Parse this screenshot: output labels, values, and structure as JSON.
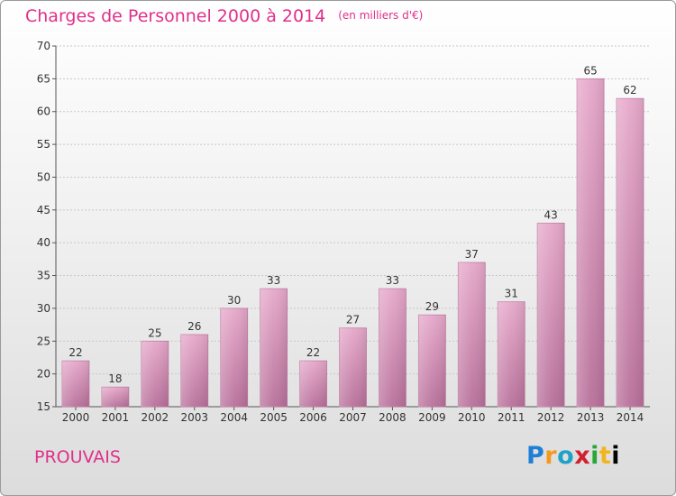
{
  "header": {
    "title": "Charges de Personnel 2000 à 2014",
    "subtitle": "(en milliers d'€)"
  },
  "footer": {
    "commune": "PROUVAIS",
    "logo_letters": [
      "P",
      "r",
      "o",
      "x",
      "i",
      "t",
      "i"
    ]
  },
  "chart_data": {
    "type": "bar",
    "title": "Charges de Personnel 2000 à 2014",
    "subtitle": "(en milliers d'€)",
    "xlabel": "",
    "ylabel": "",
    "categories": [
      "2000",
      "2001",
      "2002",
      "2003",
      "2004",
      "2005",
      "2006",
      "2007",
      "2008",
      "2009",
      "2010",
      "2011",
      "2012",
      "2013",
      "2014"
    ],
    "values": [
      22,
      18,
      25,
      26,
      30,
      33,
      22,
      27,
      33,
      29,
      37,
      31,
      43,
      65,
      62
    ],
    "data_labels": [
      "22",
      "18",
      "25",
      "26",
      "30",
      "33",
      "22",
      "27",
      "33",
      "29",
      "37",
      "31",
      "43",
      "65",
      "62"
    ],
    "ylim": [
      15,
      70
    ],
    "yticks": [
      15,
      20,
      25,
      30,
      35,
      40,
      45,
      50,
      55,
      60,
      65,
      70
    ],
    "grid": true,
    "bar_color": "#d98ab5",
    "legend": "none"
  }
}
